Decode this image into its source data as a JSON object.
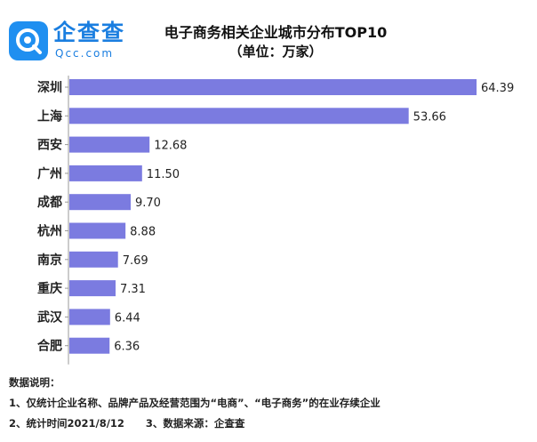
{
  "header": {
    "logo_text": "企查查",
    "logo_sub": "Qcc.com",
    "title": "电子商务相关企业城市分布TOP10",
    "subtitle": "（单位：万家）"
  },
  "colors": {
    "bar": "#7b7be0",
    "logo": "#1f8ff0"
  },
  "chart_data": {
    "type": "bar",
    "orientation": "horizontal",
    "categories": [
      "深圳",
      "上海",
      "西安",
      "广州",
      "成都",
      "杭州",
      "南京",
      "重庆",
      "武汉",
      "合肥"
    ],
    "values": [
      64.39,
      53.66,
      12.68,
      11.5,
      9.7,
      8.88,
      7.69,
      7.31,
      6.44,
      6.36
    ],
    "value_labels": [
      "64.39",
      "53.66",
      "12.68",
      "11.50",
      "9.70",
      "8.88",
      "7.69",
      "7.31",
      "6.44",
      "6.36"
    ],
    "title": "电子商务相关企业城市分布TOP10",
    "subtitle": "（单位：万家）",
    "xlabel": "",
    "ylabel": "",
    "xlim": [
      0,
      64.39
    ],
    "grid": false,
    "legend": "none"
  },
  "notes": {
    "heading": "数据说明：",
    "line1": "1、仅统计企业名称、品牌产品及经营范围为“电商”、“电子商务”的在业存续企业",
    "line2": "2、统计时间2021/8/12      3、数据来源：企查查"
  }
}
